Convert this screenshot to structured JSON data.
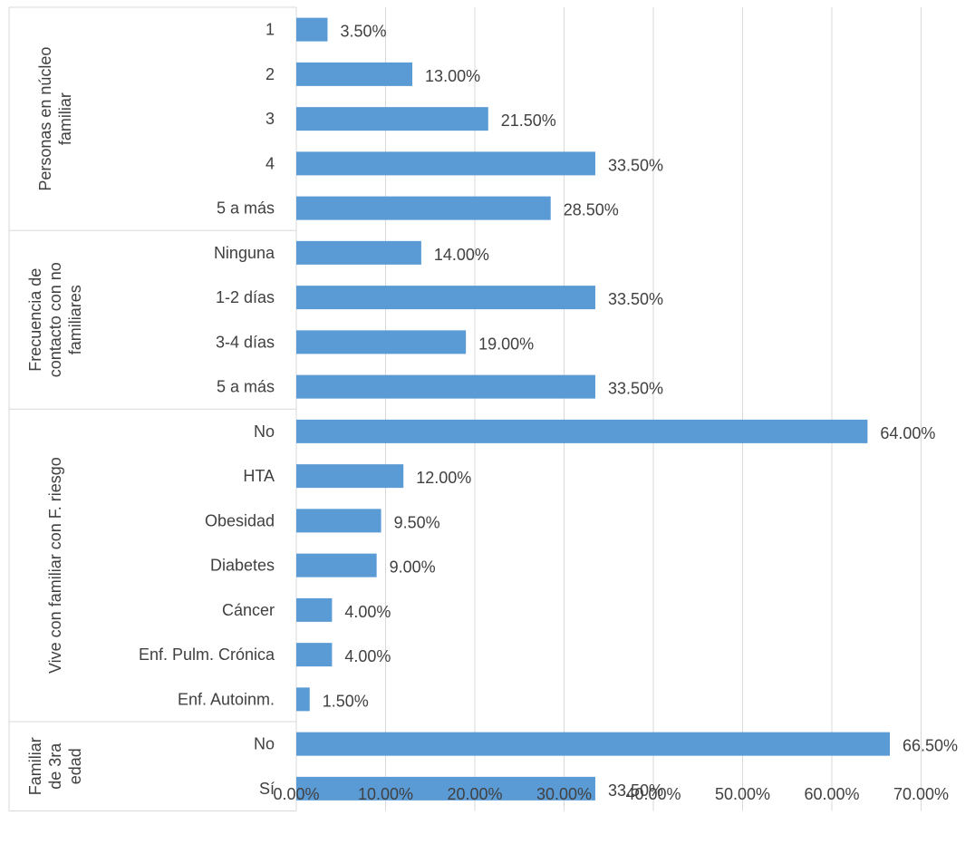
{
  "chart_data": {
    "type": "bar",
    "orientation": "horizontal",
    "bar_color": "#5b9bd5",
    "xlim": [
      0,
      70
    ],
    "x_ticks": [
      "0.00%",
      "10.00%",
      "20.00%",
      "30.00%",
      "40.00%",
      "50.00%",
      "60.00%",
      "70.00%"
    ],
    "grid": true,
    "groups": [
      {
        "label_lines": [
          "Personas en núcleo",
          "familiar"
        ],
        "categories": [
          {
            "label": "1",
            "value": 3.5,
            "data_label": "3.50%"
          },
          {
            "label": "2",
            "value": 13.0,
            "data_label": "13.00%"
          },
          {
            "label": "3",
            "value": 21.5,
            "data_label": "21.50%"
          },
          {
            "label": "4",
            "value": 33.5,
            "data_label": "33.50%"
          },
          {
            "label": "5 a más",
            "value": 28.5,
            "data_label": "28.50%"
          }
        ]
      },
      {
        "label_lines": [
          "Frecuencia de",
          "contacto con no",
          "familiares"
        ],
        "categories": [
          {
            "label": "Ninguna",
            "value": 14.0,
            "data_label": "14.00%"
          },
          {
            "label": "1-2 días",
            "value": 33.5,
            "data_label": "33.50%"
          },
          {
            "label": "3-4 días",
            "value": 19.0,
            "data_label": "19.00%"
          },
          {
            "label": "5 a más",
            "value": 33.5,
            "data_label": "33.50%"
          }
        ]
      },
      {
        "label_lines": [
          "Vive con familiar con F. riesgo"
        ],
        "categories": [
          {
            "label": "No",
            "value": 64.0,
            "data_label": "64.00%"
          },
          {
            "label": "HTA",
            "value": 12.0,
            "data_label": "12.00%"
          },
          {
            "label": "Obesidad",
            "value": 9.5,
            "data_label": "9.50%"
          },
          {
            "label": "Diabetes",
            "value": 9.0,
            "data_label": "9.00%"
          },
          {
            "label": "Cáncer",
            "value": 4.0,
            "data_label": "4.00%"
          },
          {
            "label": "Enf. Pulm. Crónica",
            "value": 4.0,
            "data_label": "4.00%"
          },
          {
            "label": "Enf. Autoinm.",
            "value": 1.5,
            "data_label": "1.50%"
          }
        ]
      },
      {
        "label_lines": [
          "Familiar",
          "de 3ra",
          "edad"
        ],
        "categories": [
          {
            "label": "No",
            "value": 66.5,
            "data_label": "66.50%"
          },
          {
            "label": "Sí",
            "value": 33.5,
            "data_label": "33.50%"
          }
        ]
      }
    ]
  }
}
